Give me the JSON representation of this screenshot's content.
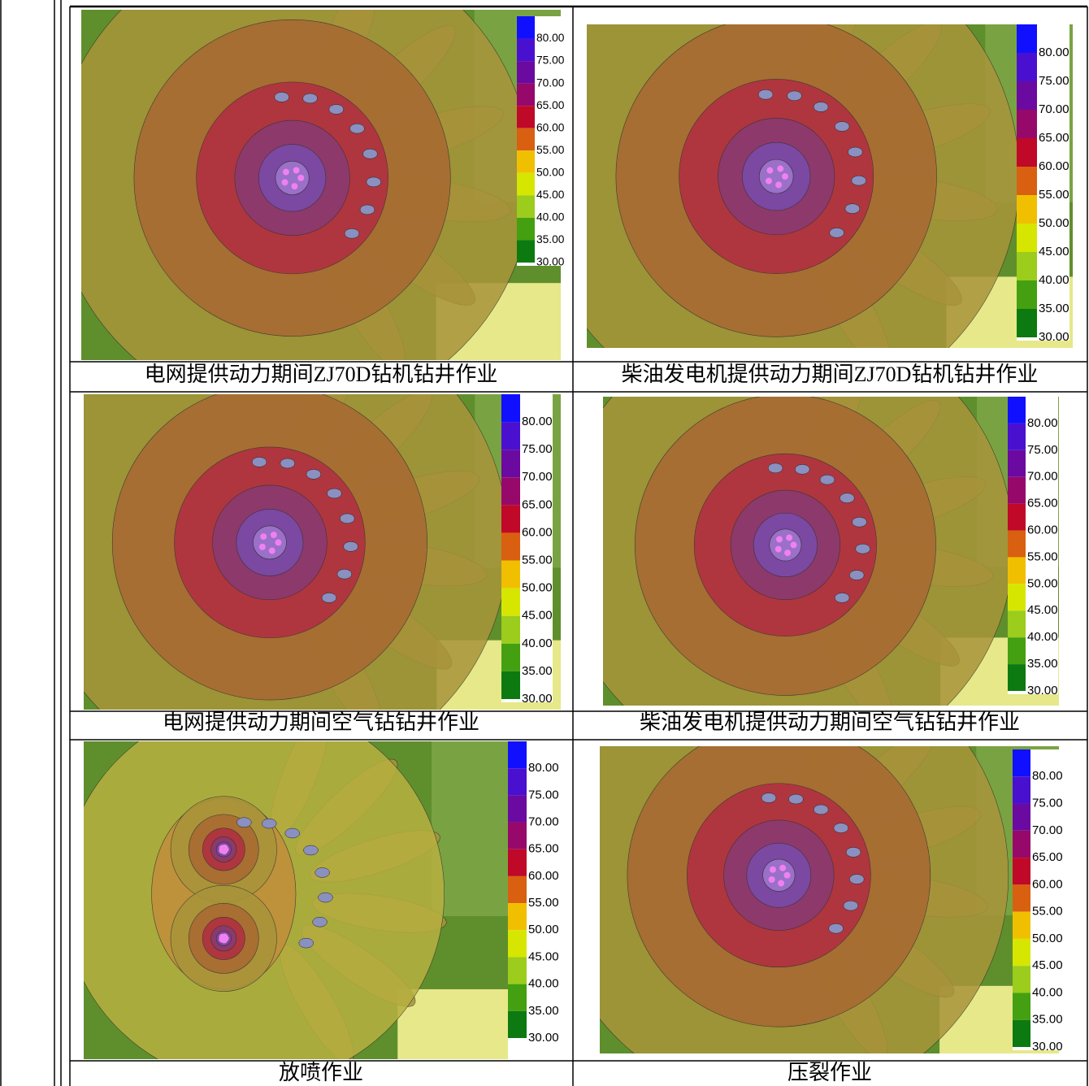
{
  "legend_colors": [
    "#1010ff",
    "#4a10d0",
    "#6a0aa0",
    "#96086a",
    "#c00828",
    "#d86010",
    "#f0c000",
    "#d6e600",
    "#9ccc1c",
    "#44a010",
    "#0c7a10"
  ],
  "panels": [
    {
      "caption": "电网提供动力期间ZJ70D钻机钻井作业",
      "legend": [
        "80.00",
        "75.00",
        "70.00",
        "65.00",
        "60.00",
        "55.00",
        "50.00",
        "45.00",
        "40.00",
        "35.00",
        "30.00"
      ]
    },
    {
      "caption": "柴油发电机提供动力期间ZJ70D钻机钻井作业",
      "legend": [
        "80.00",
        "75.00",
        "70.00",
        "65.00",
        "60.00",
        "55.00",
        "50.00",
        "45.00",
        "40.00",
        "35.00",
        "30.00"
      ]
    },
    {
      "caption": "电网提供动力期间空气钻钻井作业",
      "legend": [
        "80.00",
        "75.00",
        "70.00",
        "65.00",
        "60.00",
        "55.00",
        "50.00",
        "45.00",
        "40.00",
        "35.00",
        "30.00"
      ]
    },
    {
      "caption": "柴油发电机提供动力期间空气钻钻井作业",
      "legend": [
        "80.00",
        "75.00",
        "70.00",
        "65.00",
        "60.00",
        "55.00",
        "50.00",
        "45.00",
        "40.00",
        "35.00",
        "30.00"
      ]
    },
    {
      "caption": "放喷作业",
      "legend": [
        "80.00",
        "75.00",
        "70.00",
        "65.00",
        "60.00",
        "55.00",
        "50.00",
        "45.00",
        "40.00",
        "35.00",
        "30.00"
      ]
    },
    {
      "caption": "压裂作业",
      "legend": [
        "80.00",
        "75.00",
        "70.00",
        "65.00",
        "60.00",
        "55.00",
        "50.00",
        "45.00",
        "40.00",
        "35.00",
        "30.00"
      ]
    }
  ]
}
